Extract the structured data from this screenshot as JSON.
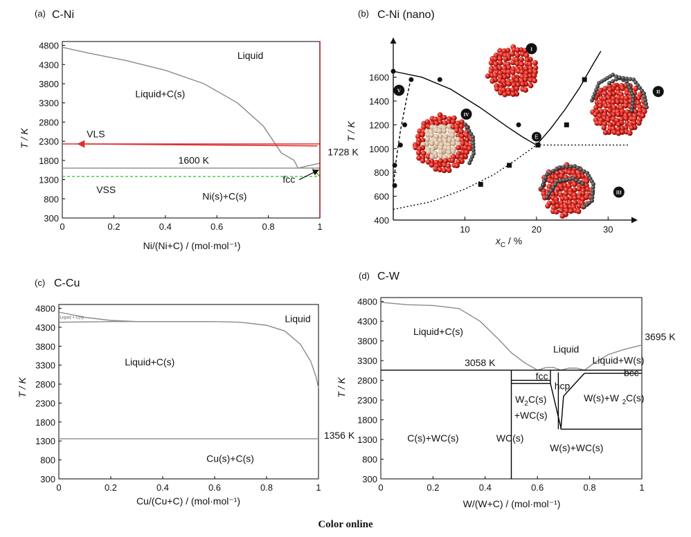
{
  "caption": "Color online",
  "chart_data": [
    {
      "id": "a",
      "type": "line",
      "tag": "(a)",
      "title": "C-Ni",
      "xlabel": "Ni/(Ni+C) / (mol·mol⁻¹)",
      "ylabel": "T / K",
      "xlim": [
        0,
        1
      ],
      "ylim": [
        300,
        5000
      ],
      "xticks": [
        0,
        0.2,
        0.4,
        0.6,
        0.8,
        1
      ],
      "xtick_labels": [
        "0",
        "0.2",
        "0.4",
        "0.6",
        "0.8",
        "1"
      ],
      "yticks": [
        300,
        800,
        1300,
        1800,
        2300,
        2800,
        3300,
        3800,
        4300,
        4800
      ],
      "series": [
        {
          "name": "liquidus",
          "color": "#8a8a8a",
          "x": [
            0,
            0.1,
            0.25,
            0.4,
            0.55,
            0.68,
            0.78,
            0.85,
            0.9,
            0.915
          ],
          "y": [
            4750,
            4600,
            4400,
            4150,
            3800,
            3300,
            2700,
            2000,
            1800,
            1600
          ]
        },
        {
          "name": "eutectic",
          "color": "#8a8a8a",
          "x": [
            0,
            1
          ],
          "y": [
            1600,
            1600
          ]
        },
        {
          "name": "ni-liquidus",
          "color": "#8a8a8a",
          "x": [
            0.915,
            1
          ],
          "y": [
            1600,
            1728
          ]
        },
        {
          "name": "VLS",
          "color": "#e03030",
          "x": [
            0,
            1
          ],
          "y": [
            2230,
            2230
          ]
        },
        {
          "name": "VSS",
          "color": "#33cc33",
          "dash": true,
          "x": [
            0,
            1
          ],
          "y": [
            1380,
            1380
          ]
        },
        {
          "name": "fcc-boundary",
          "color": "#33cc33",
          "x": [
            0.97,
            1
          ],
          "y": [
            1600,
            1380
          ]
        },
        {
          "name": "ni-edge",
          "color": "#8b0000",
          "x": [
            1,
            1
          ],
          "y": [
            300,
            4900
          ]
        }
      ],
      "labels": [
        {
          "text": "Liquid",
          "x": 0.73,
          "y": 4450
        },
        {
          "text": "Liquid+C(s)",
          "x": 0.38,
          "y": 3450
        },
        {
          "text": "VLS",
          "x": 0.13,
          "y": 2400
        },
        {
          "text": "1600 K",
          "x": 0.51,
          "y": 1720
        },
        {
          "text": "1728 K",
          "x": 1.09,
          "y": 1930
        },
        {
          "text": "VSS",
          "x": 0.17,
          "y": 950
        },
        {
          "text": "fcc",
          "x": 0.88,
          "y": 1220
        },
        {
          "text": "Ni(s)+C(s)",
          "x": 0.63,
          "y": 780
        }
      ],
      "arrows": [
        {
          "from": [
            0.92,
            1300
          ],
          "to": [
            0.995,
            1550
          ]
        },
        {
          "from": [
            0.99,
            2180
          ],
          "to": [
            0.06,
            2230
          ]
        }
      ]
    },
    {
      "id": "b",
      "type": "scatter",
      "tag": "(b)",
      "title": "C-Ni (nano)",
      "xlabel": "x",
      "xlabel_sub": "C",
      "xlabel_unit": " / %",
      "ylabel": "T / K",
      "xlim": [
        0,
        35
      ],
      "ylim": [
        400,
        1900
      ],
      "xticks": [
        10,
        20,
        30
      ],
      "xtick_labels": [
        "10",
        "20",
        "30"
      ],
      "yticks": [
        400,
        600,
        800,
        1000,
        1200,
        1400,
        1600
      ],
      "series": [
        {
          "name": "liquidus-left",
          "color": "#000000",
          "x": [
            0,
            4,
            8,
            12,
            16,
            18,
            20
          ],
          "y": [
            1650,
            1600,
            1500,
            1350,
            1180,
            1100,
            1030
          ]
        },
        {
          "name": "liquidus-right",
          "color": "#000000",
          "x": [
            20,
            22,
            24,
            26,
            28,
            29
          ],
          "y": [
            1030,
            1170,
            1330,
            1510,
            1720,
            1820
          ]
        },
        {
          "name": "eutectic-dotted",
          "color": "#000000",
          "dash": "2,3",
          "x": [
            20,
            33
          ],
          "y": [
            1030,
            1030
          ]
        },
        {
          "name": "solubility-dashed",
          "color": "#000000",
          "dash": "4,3",
          "x": [
            0,
            0.4,
            1,
            1.8,
            2.5
          ],
          "y": [
            680,
            900,
            1150,
            1400,
            1600
          ]
        },
        {
          "name": "solvus-dotted",
          "color": "#000000",
          "dash": "2,3",
          "x": [
            0,
            5,
            10,
            14,
            17,
            20
          ],
          "y": [
            490,
            550,
            660,
            780,
            900,
            1030
          ]
        }
      ],
      "points_circle": [
        [
          0,
          1650
        ],
        [
          0.2,
          860
        ],
        [
          0.2,
          690
        ],
        [
          1,
          1030
        ],
        [
          1.6,
          1200
        ],
        [
          2.5,
          1580
        ],
        [
          6.5,
          1580
        ],
        [
          17.5,
          1200
        ]
      ],
      "points_square": [
        [
          12.2,
          700
        ],
        [
          16.2,
          860
        ],
        [
          20.2,
          1030
        ],
        [
          24.2,
          1200
        ],
        [
          26.7,
          1580
        ]
      ],
      "eutectic_marker": {
        "text": "E",
        "x": 20.2,
        "y": 1100
      },
      "phase_tags": [
        "I",
        "II",
        "III",
        "IV",
        "V"
      ],
      "phase_tag_positions": [
        [
          19.3,
          1840
        ],
        [
          37.0,
          1480
        ],
        [
          31.5,
          635
        ],
        [
          10.2,
          1290
        ],
        [
          0.8,
          1490
        ]
      ]
    },
    {
      "id": "c",
      "type": "line",
      "tag": "(c)",
      "title": "C-Cu",
      "xlabel": "Cu/(Cu+C) / (mol·mol⁻¹)",
      "ylabel": "T / K",
      "xlim": [
        0,
        1
      ],
      "ylim": [
        300,
        5000
      ],
      "xticks": [
        0,
        0.2,
        0.4,
        0.6,
        0.8,
        1
      ],
      "xtick_labels": [
        "0",
        "0.2",
        "0.4",
        "0.6",
        "0.8",
        "1"
      ],
      "yticks": [
        300,
        800,
        1300,
        1800,
        2300,
        2800,
        3300,
        3800,
        4300,
        4800
      ],
      "series": [
        {
          "name": "liquidus",
          "color": "#8a8a8a",
          "x": [
            0,
            0.1,
            0.2,
            0.3,
            0.5,
            0.6,
            0.7,
            0.8,
            0.87,
            0.93,
            0.97,
            0.99,
            1
          ],
          "y": [
            4700,
            4560,
            4480,
            4450,
            4450,
            4450,
            4430,
            4350,
            4200,
            3850,
            3400,
            3000,
            2700
          ]
        },
        {
          "name": "liquidus-lower",
          "color": "#8a8a8a",
          "x": [
            0,
            0.1,
            0.2,
            0.3,
            0.5,
            0.6
          ],
          "y": [
            4430,
            4440,
            4450,
            4450,
            4450,
            4450
          ]
        },
        {
          "name": "eutectic",
          "color": "#8a8a8a",
          "x": [
            0,
            1
          ],
          "y": [
            1356,
            1356
          ]
        }
      ],
      "labels": [
        {
          "text": "Liquid",
          "x": 0.92,
          "y": 4430
        },
        {
          "text": "Liquid+C(s)",
          "x": 0.35,
          "y": 3290
        },
        {
          "text": "1356 K",
          "x": 1.08,
          "y": 1356
        },
        {
          "text": "Cu(s)+C(s)",
          "x": 0.66,
          "y": 750
        }
      ],
      "small_label": {
        "text": "Liquid + C(s)",
        "x": 0.05,
        "y": 4530
      }
    },
    {
      "id": "d",
      "type": "line",
      "tag": "(d)",
      "title": "C-W",
      "xlabel": "W/(W+C) / (mol·mol⁻¹)",
      "ylabel": "T / K",
      "xlim": [
        0,
        1
      ],
      "ylim": [
        300,
        5000
      ],
      "xticks": [
        0,
        0.2,
        0.4,
        0.6,
        0.8,
        1
      ],
      "xtick_labels": [
        "0",
        "0.2",
        "0.4",
        "0.6",
        "0.8",
        "1"
      ],
      "yticks": [
        300,
        800,
        1300,
        1800,
        2300,
        2800,
        3300,
        3800,
        4300,
        4800
      ],
      "series": [
        {
          "name": "liquidus-left",
          "color": "#8a8a8a",
          "x": [
            0,
            0.1,
            0.2,
            0.3,
            0.38,
            0.45,
            0.5,
            0.55,
            0.6
          ],
          "y": [
            4780,
            4720,
            4700,
            4620,
            4300,
            3850,
            3500,
            3250,
            3058
          ]
        },
        {
          "name": "dome-1",
          "color": "#8a8a8a",
          "x": [
            0.6,
            0.63,
            0.66,
            0.69
          ],
          "y": [
            3058,
            3120,
            3130,
            3058
          ]
        },
        {
          "name": "dome-2",
          "color": "#8a8a8a",
          "x": [
            0.69,
            0.72,
            0.75,
            0.78
          ],
          "y": [
            3058,
            3110,
            3110,
            3058
          ]
        },
        {
          "name": "liquidus-right",
          "color": "#8a8a8a",
          "x": [
            0.78,
            0.82,
            0.87,
            0.93,
            1
          ],
          "y": [
            3058,
            3250,
            3450,
            3580,
            3695
          ]
        },
        {
          "name": "eutectic",
          "color": "#000000",
          "x": [
            0,
            1
          ],
          "y": [
            3058,
            3058
          ]
        },
        {
          "name": "wc-line",
          "color": "#000000",
          "x": [
            0.5,
            0.5
          ],
          "y": [
            300,
            3058
          ]
        },
        {
          "name": "w2c-top",
          "color": "#000000",
          "x": [
            0.5,
            0.65
          ],
          "y": [
            2800,
            2800
          ]
        },
        {
          "name": "w2c-top2",
          "color": "#000000",
          "x": [
            0.5,
            0.65
          ],
          "y": [
            2720,
            2720
          ]
        },
        {
          "name": "w2c-right",
          "color": "#000000",
          "x": [
            0.65,
            0.65
          ],
          "y": [
            2720,
            3058
          ]
        },
        {
          "name": "hcp-left",
          "color": "#000000",
          "x": [
            0.65,
            0.69,
            0.69
          ],
          "y": [
            2720,
            1600,
            1560
          ]
        },
        {
          "name": "hcp-right",
          "color": "#000000",
          "x": [
            0.69,
            0.7,
            0.78
          ],
          "y": [
            1560,
            2400,
            2980
          ]
        },
        {
          "name": "hcp-mid",
          "color": "#000000",
          "x": [
            0.68,
            0.68
          ],
          "y": [
            1560,
            3000
          ]
        },
        {
          "name": "w2c-eutectoid",
          "color": "#000000",
          "x": [
            0.69,
            1
          ],
          "y": [
            1560,
            1560
          ]
        },
        {
          "name": "bcc",
          "color": "#000000",
          "x": [
            0.78,
            1
          ],
          "y": [
            2980,
            2980
          ]
        }
      ],
      "labels": [
        {
          "text": "Liquid+C(s)",
          "x": 0.22,
          "y": 3950
        },
        {
          "text": "Liquid",
          "x": 0.71,
          "y": 3500
        },
        {
          "text": "3695 K",
          "x": 1.07,
          "y": 3820
        },
        {
          "text": "3058 K",
          "x": 0.38,
          "y": 3160
        },
        {
          "text": "Liquid+W(s)",
          "x": 0.91,
          "y": 3220
        },
        {
          "text": "bcc",
          "x": 0.96,
          "y": 2910
        },
        {
          "text": "fcc",
          "x": 0.617,
          "y": 2820
        },
        {
          "text": "hcp",
          "x": 0.695,
          "y": 2570
        },
        {
          "text": "W(s)+W",
          "x": 0.845,
          "y": 2270
        },
        {
          "text": "C(s)+WC(s)",
          "x": 0.2,
          "y": 1250
        },
        {
          "text": "WC(s)",
          "x": 0.495,
          "y": 1250
        },
        {
          "text": "W(s)+WC(s)",
          "x": 0.75,
          "y": 1000
        }
      ],
      "w2c_label": {
        "line1": "W",
        "line1_sub": "2",
        "line1_tail": "C(s)",
        "line2": "+WC(s)"
      },
      "w2c_label_2_tail": "C(s)"
    }
  ]
}
